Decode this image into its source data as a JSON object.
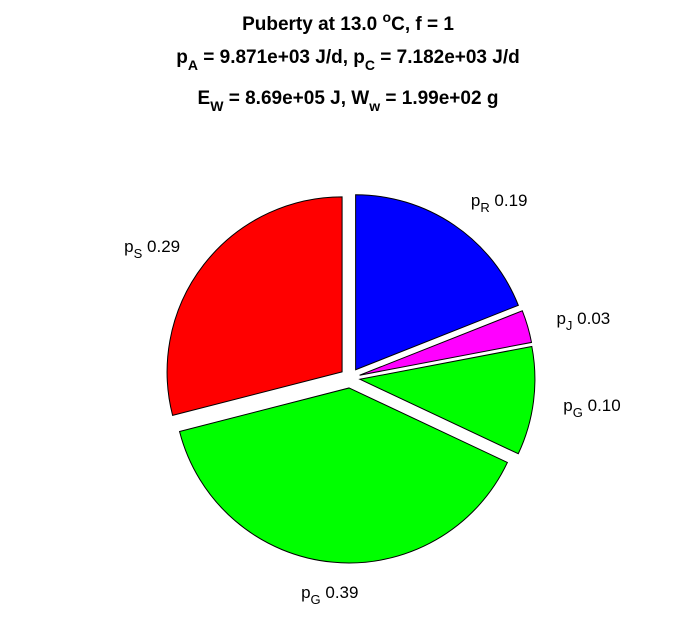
{
  "chart_data": {
    "type": "pie",
    "title_lines": [
      [
        {
          "t": "Puberty at 13.0 "
        },
        {
          "t": "o",
          "sup": true
        },
        {
          "t": "C, f = 1"
        }
      ],
      [
        {
          "t": "p"
        },
        {
          "t": "A",
          "sub": true
        },
        {
          "t": " = 9.871e+03 J/d,  p"
        },
        {
          "t": "C",
          "sub": true
        },
        {
          "t": " = 7.182e+03 J/d"
        }
      ],
      [
        {
          "t": "E"
        },
        {
          "t": "W",
          "sub": true
        },
        {
          "t": " = 8.69e+05 J, W"
        },
        {
          "t": "w",
          "sub": true
        },
        {
          "t": " = 1.99e+02 g"
        }
      ]
    ],
    "slices": [
      {
        "symbol": "p",
        "subscript": "R",
        "value": 0.19,
        "value_label": "0.19",
        "color": "#0000ff"
      },
      {
        "symbol": "p",
        "subscript": "J",
        "value": 0.03,
        "value_label": "0.03",
        "color": "#ff00ff"
      },
      {
        "symbol": "p",
        "subscript": "G",
        "value": 0.1,
        "value_label": "0.10",
        "color": "#00ff00"
      },
      {
        "symbol": "p",
        "subscript": "G",
        "value": 0.39,
        "value_label": "0.39",
        "color": "#00ff00"
      },
      {
        "symbol": "p",
        "subscript": "S",
        "value": 0.29,
        "value_label": "0.29",
        "color": "#ff0000"
      }
    ],
    "start_angle_deg": 0,
    "direction": "clockwise",
    "exploded": true,
    "edge_color": "#000000"
  }
}
